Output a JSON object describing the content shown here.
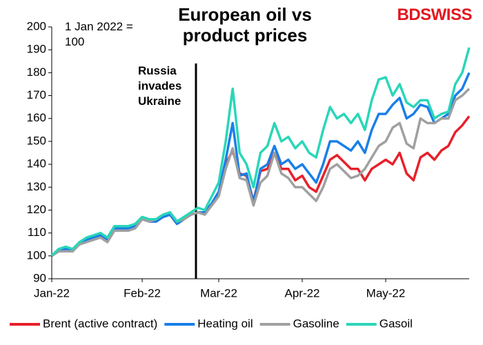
{
  "chart_data": {
    "type": "line",
    "title": "European oil vs product prices",
    "brand": "BDSWISS",
    "note": "1 Jan 2022 = 100",
    "annotation": "Russia invades Ukraine",
    "categories": [
      "Jan-22",
      null,
      null,
      null,
      null,
      null,
      null,
      null,
      null,
      null,
      null,
      null,
      null,
      "Feb-22",
      null,
      null,
      null,
      null,
      null,
      null,
      null,
      null,
      null,
      null,
      "Mar-22",
      null,
      null,
      null,
      null,
      null,
      null,
      null,
      null,
      null,
      null,
      null,
      "Apr-22",
      null,
      null,
      null,
      null,
      null,
      null,
      null,
      null,
      null,
      null,
      null,
      "May-22",
      null,
      null,
      null,
      null,
      null,
      null,
      null,
      null,
      null,
      null,
      null,
      null
    ],
    "series": [
      {
        "name": "Brent (active contract)",
        "color": "#e8202a",
        "values": [
          100,
          102,
          103,
          102,
          106,
          107,
          107,
          109,
          107,
          111,
          111,
          112,
          113,
          116,
          115,
          115,
          117,
          118,
          114,
          116,
          118,
          119,
          119,
          122,
          127,
          140,
          146,
          136,
          135,
          124,
          137,
          138,
          145,
          138,
          138,
          133,
          135,
          130,
          128,
          135,
          142,
          144,
          141,
          138,
          138,
          133,
          138,
          140,
          142,
          140,
          145,
          136,
          133,
          143,
          145,
          142,
          146,
          148,
          154,
          157,
          161
        ]
      },
      {
        "name": "Heating oil",
        "color": "#1a7fe8",
        "values": [
          100,
          103,
          103,
          102,
          106,
          107,
          108,
          109,
          107,
          112,
          112,
          112,
          113,
          116,
          115,
          115,
          117,
          118,
          114,
          116,
          118,
          119,
          119,
          123,
          128,
          142,
          158,
          135,
          136,
          123,
          138,
          140,
          148,
          140,
          142,
          138,
          140,
          136,
          132,
          140,
          150,
          150,
          148,
          146,
          150,
          145,
          155,
          162,
          162,
          166,
          169,
          160,
          162,
          166,
          165,
          158,
          160,
          162,
          170,
          173,
          180
        ]
      },
      {
        "name": "Gasoline",
        "color": "#a0a0a0",
        "values": [
          100,
          102,
          102,
          102,
          105,
          106,
          107,
          108,
          106,
          111,
          111,
          111,
          112,
          116,
          115,
          116,
          118,
          119,
          115,
          116,
          118,
          119,
          118,
          122,
          126,
          138,
          147,
          134,
          133,
          122,
          132,
          135,
          145,
          136,
          134,
          130,
          130,
          127,
          124,
          130,
          138,
          140,
          137,
          134,
          135,
          138,
          143,
          148,
          150,
          156,
          158,
          149,
          147,
          160,
          158,
          158,
          160,
          160,
          168,
          170,
          173
        ]
      },
      {
        "name": "Gasoil",
        "color": "#2ad6b8",
        "values": [
          100,
          103,
          104,
          103,
          106,
          108,
          109,
          110,
          108,
          113,
          113,
          113,
          114,
          117,
          116,
          116,
          118,
          119,
          115,
          117,
          119,
          121,
          120,
          126,
          132,
          150,
          173,
          145,
          140,
          130,
          145,
          148,
          158,
          150,
          152,
          147,
          150,
          145,
          143,
          155,
          165,
          160,
          162,
          158,
          162,
          155,
          168,
          177,
          178,
          170,
          175,
          167,
          165,
          168,
          168,
          160,
          162,
          163,
          175,
          180,
          191
        ]
      }
    ],
    "ylim": [
      90,
      200
    ],
    "yticks": [
      90,
      100,
      110,
      120,
      130,
      140,
      150,
      160,
      170,
      180,
      190,
      200
    ],
    "grid": false
  }
}
